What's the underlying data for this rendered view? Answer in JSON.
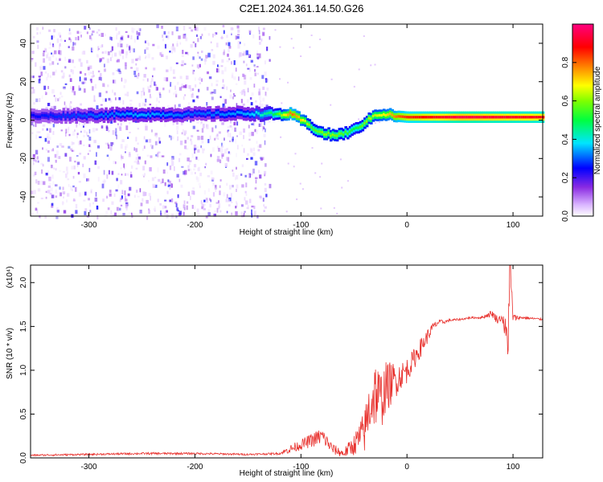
{
  "title": "C2E1.2024.361.14.50.G26",
  "chart_data": [
    {
      "type": "heatmap",
      "xlabel": "Height of straight line (km)",
      "ylabel": "Frequency (Hz)",
      "xlim": [
        -355,
        128
      ],
      "ylim": [
        -50,
        50
      ],
      "xticks": [
        -300,
        -200,
        -100,
        0,
        100
      ],
      "yticks": [
        -40,
        -20,
        0,
        20,
        40
      ],
      "colorbar": {
        "label": "Normalized spectral amplitude",
        "range": [
          0.0,
          1.0
        ],
        "ticks": [
          "0.0",
          "0.2",
          "0.4",
          "0.6",
          "0.8"
        ],
        "colormap": "purple-blue-cyan-green-yellow-red-pink"
      },
      "ridge": {
        "x": [
          -355,
          -300,
          -250,
          -200,
          -150,
          -125,
          -110,
          -100,
          -90,
          -80,
          -70,
          -60,
          -50,
          -40,
          -30,
          -20,
          -10,
          0,
          50,
          128
        ],
        "freq": [
          2,
          2.5,
          3,
          3,
          3.5,
          3,
          3,
          0,
          -4,
          -7,
          -8,
          -7,
          -5,
          -1,
          3,
          3,
          2,
          1.5,
          1.5,
          1.5
        ],
        "amplitude": [
          0.25,
          0.3,
          0.35,
          0.3,
          0.35,
          0.5,
          0.8,
          0.7,
          0.55,
          0.6,
          0.6,
          0.55,
          0.5,
          0.6,
          0.65,
          0.7,
          0.8,
          0.85,
          0.95,
          0.9
        ]
      },
      "noise_region_x": [
        -355,
        -130
      ]
    },
    {
      "type": "line",
      "xlabel": "Height of straight line (km)",
      "ylabel": "SNR (10 * v/v)",
      "y_multiplier": "(x10⁴)",
      "xlim": [
        -355,
        128
      ],
      "ylim": [
        0,
        2.2
      ],
      "xticks": [
        -300,
        -200,
        -100,
        0,
        100
      ],
      "yticks": [
        "0.0",
        "0.5",
        "1.0",
        "1.5",
        "2.0"
      ],
      "series": [
        {
          "color": "#e8302c",
          "x": [
            -355,
            -300,
            -250,
            -200,
            -150,
            -120,
            -110,
            -100,
            -90,
            -80,
            -70,
            -60,
            -50,
            -40,
            -35,
            -30,
            -25,
            -20,
            -15,
            -10,
            -5,
            0,
            5,
            10,
            15,
            20,
            25,
            30,
            35,
            40,
            50,
            60,
            70,
            80,
            85,
            90,
            95,
            97,
            100,
            105,
            110,
            128
          ],
          "values": [
            0.03,
            0.04,
            0.05,
            0.05,
            0.04,
            0.05,
            0.1,
            0.15,
            0.2,
            0.25,
            0.1,
            0.05,
            0.15,
            0.3,
            0.6,
            0.75,
            0.65,
            0.8,
            0.85,
            0.9,
            0.95,
            1.0,
            1.1,
            1.2,
            1.3,
            1.4,
            1.5,
            1.55,
            1.55,
            1.57,
            1.58,
            1.6,
            1.6,
            1.65,
            1.58,
            1.6,
            1.3,
            2.2,
            1.6,
            1.6,
            1.6,
            1.58
          ],
          "noise": [
            0.01,
            0.01,
            0.012,
            0.012,
            0.01,
            0.012,
            0.05,
            0.06,
            0.08,
            0.1,
            0.06,
            0.05,
            0.12,
            0.25,
            0.35,
            0.4,
            0.35,
            0.3,
            0.25,
            0.2,
            0.15,
            0.15,
            0.12,
            0.12,
            0.1,
            0.08,
            0.05,
            0.03,
            0.02,
            0.015,
            0.012,
            0.012,
            0.012,
            0.04,
            0.05,
            0.03,
            0.3,
            0.4,
            0.05,
            0.02,
            0.015,
            0.012
          ]
        }
      ]
    }
  ]
}
